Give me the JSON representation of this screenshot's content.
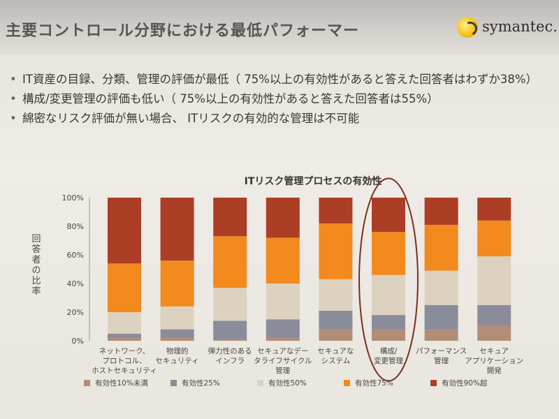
{
  "slide": {
    "title": "主要コントロール分野における最低パフォーマー",
    "logo_text": "symantec.",
    "bullets": [
      "IT資産の目録、分類、管理の評価が最低（ 75%以上の有効性があると答えた回答者はわずか38%）",
      "構成/変更管理の評価も低い（ 75%以上の有効性があると答えた回答者は55%）",
      "綿密なリスク評価が無い場合、 ITリスクの有効的な管理は不可能"
    ]
  },
  "chart_data": {
    "type": "bar",
    "stacked": true,
    "title": "ITリスク管理プロセスの有効性",
    "ylabel": "回答者の比率",
    "ylim": [
      0,
      100
    ],
    "yticks": [
      "0%",
      "20%",
      "40%",
      "60%",
      "80%",
      "100%"
    ],
    "categories": [
      [
        "ネットワーク、",
        "プロトコル、",
        "ホストセキュリティ"
      ],
      [
        "物理的",
        "セキュリティ"
      ],
      [
        "弾力性のある",
        "インフラ"
      ],
      [
        "セキュアなデー",
        "タライフサイクル",
        "管理"
      ],
      [
        "セキュアな",
        "システム"
      ],
      [
        "構成/",
        "変更管理"
      ],
      [
        "パフォーマンス",
        "管理"
      ],
      [
        "セキュア",
        "アプリケーション",
        "開発"
      ]
    ],
    "series": [
      {
        "name": "有効性10%未満",
        "color": "#b28d78",
        "values": [
          2,
          2,
          1,
          2,
          8,
          8,
          8,
          11
        ]
      },
      {
        "name": "有効性25%",
        "color": "#8a8c99",
        "values": [
          3,
          6,
          13,
          13,
          13,
          10,
          17,
          14
        ]
      },
      {
        "name": "有効性50%",
        "color": "#ddd2bf",
        "values": [
          15,
          16,
          23,
          25,
          22,
          28,
          24,
          34
        ]
      },
      {
        "name": "有効性75%",
        "color": "#f28a1e",
        "values": [
          34,
          32,
          36,
          32,
          39,
          30,
          32,
          25
        ]
      },
      {
        "name": "有効性90%超",
        "color": "#ad3e26",
        "values": [
          46,
          44,
          27,
          28,
          18,
          24,
          19,
          16
        ]
      }
    ],
    "highlight_category_index": 5,
    "grid": false,
    "legend_position": "bottom"
  }
}
